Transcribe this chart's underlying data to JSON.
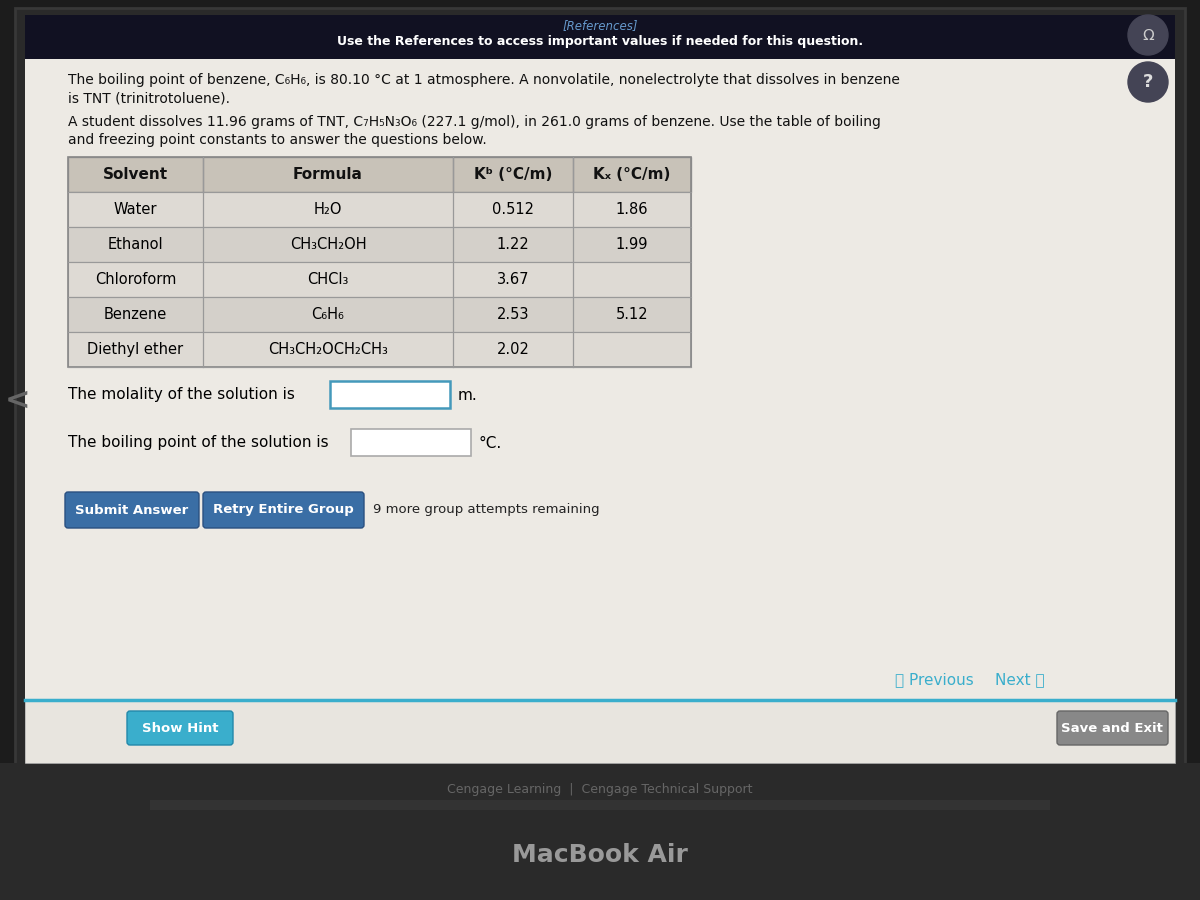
{
  "bg_outer": "#1a1a1a",
  "bg_laptop_body": "#2a2a2a",
  "bg_screen": "#e8e5df",
  "bg_header_bar": "#111122",
  "bg_content": "#edeae4",
  "bg_table_header": "#c8c2b8",
  "bg_table_row_odd": "#dedad4",
  "bg_table_row_even": "#cdc8c0",
  "text_color": "#111111",
  "teal_color": "#3aaecc",
  "link_color": "#5599cc",
  "references_text": "[References]",
  "header_line": "Use the References to access important values if needed for this question.",
  "para1_line1": "The boiling point of benzene, C₆H₆, is 80.10 °C at 1 atmosphere. A nonvolatile, nonelectrolyte that dissolves in benzene",
  "para1_line2": "is TNT (trinitrotoluene).",
  "para2_line1": "A student dissolves 11.96 grams of TNT, C₇H₅N₃O₆ (227.1 g/mol), in 261.0 grams of benzene. Use the table of boiling",
  "para2_line2": "and freezing point constants to answer the questions below.",
  "table_data": [
    [
      "Water",
      "H₂O",
      "0.512",
      "1.86"
    ],
    [
      "Ethanol",
      "CH₃CH₂OH",
      "1.22",
      "1.99"
    ],
    [
      "Chloroform",
      "CHCl₃",
      "3.67",
      ""
    ],
    [
      "Benzene",
      "C₆H₆",
      "2.53",
      "5.12"
    ],
    [
      "Diethyl ether",
      "CH₃CH₂OCH₂CH₃",
      "2.02",
      ""
    ]
  ],
  "question1": "The molality of the solution is",
  "question1_unit": "m.",
  "question2": "The boiling point of the solution is",
  "question2_unit": "°C.",
  "btn_submit": "Submit Answer",
  "btn_retry": "Retry Entire Group",
  "btn_attempts": "9 more group attempts remaining",
  "btn_show_hint": "Show Hint",
  "nav_previous": "〈 Previous",
  "nav_next": "Next 〉",
  "footer_text": "Cengage Learning  |  Cengage Technical Support",
  "macbook_text": "MacBook Air"
}
